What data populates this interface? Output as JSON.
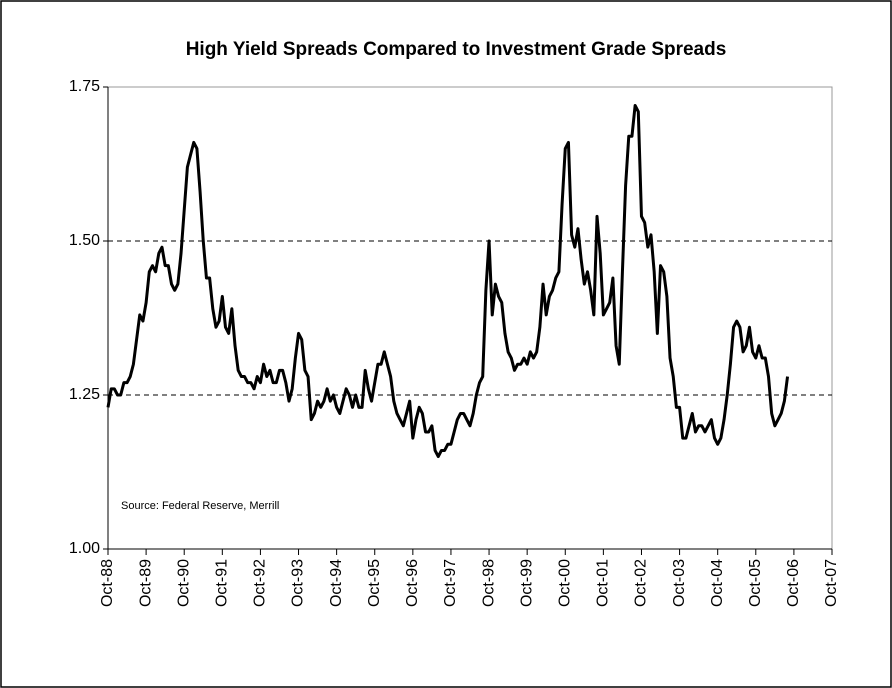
{
  "chart_data": {
    "type": "line",
    "title": "High Yield Spreads Compared to Investment Grade Spreads",
    "annotation": "Source: Federal Reserve, Merrill",
    "categories": [
      "Oct-88",
      null,
      null,
      null,
      null,
      null,
      null,
      null,
      null,
      null,
      null,
      null,
      "Oct-89",
      null,
      null,
      null,
      null,
      null,
      null,
      null,
      null,
      null,
      null,
      null,
      "Oct-90",
      null,
      null,
      null,
      null,
      null,
      null,
      null,
      null,
      null,
      null,
      null,
      "Oct-91",
      null,
      null,
      null,
      null,
      null,
      null,
      null,
      null,
      null,
      null,
      null,
      "Oct-92",
      null,
      null,
      null,
      null,
      null,
      null,
      null,
      null,
      null,
      null,
      null,
      "Oct-93",
      null,
      null,
      null,
      null,
      null,
      null,
      null,
      null,
      null,
      null,
      null,
      "Oct-94",
      null,
      null,
      null,
      null,
      null,
      null,
      null,
      null,
      null,
      null,
      null,
      "Oct-95",
      null,
      null,
      null,
      null,
      null,
      null,
      null,
      null,
      null,
      null,
      null,
      "Oct-96",
      null,
      null,
      null,
      null,
      null,
      null,
      null,
      null,
      null,
      null,
      null,
      "Oct-97",
      null,
      null,
      null,
      null,
      null,
      null,
      null,
      null,
      null,
      null,
      null,
      "Oct-98",
      null,
      null,
      null,
      null,
      null,
      null,
      null,
      null,
      null,
      null,
      null,
      "Oct-99",
      null,
      null,
      null,
      null,
      null,
      null,
      null,
      null,
      null,
      null,
      null,
      "Oct-00",
      null,
      null,
      null,
      null,
      null,
      null,
      null,
      null,
      null,
      null,
      null,
      "Oct-01",
      null,
      null,
      null,
      null,
      null,
      null,
      null,
      null,
      null,
      null,
      null,
      "Oct-02",
      null,
      null,
      null,
      null,
      null,
      null,
      null,
      null,
      null,
      null,
      null,
      "Oct-03",
      null,
      null,
      null,
      null,
      null,
      null,
      null,
      null,
      null,
      null,
      null,
      "Oct-04",
      null,
      null,
      null,
      null,
      null,
      null,
      null,
      null,
      null,
      null,
      null,
      "Oct-05",
      null,
      null,
      null,
      null,
      null,
      null,
      null,
      null,
      null,
      null,
      null,
      "Oct-06",
      null,
      null,
      null,
      null,
      null,
      null,
      null,
      null,
      null,
      null,
      null,
      "Oct-07"
    ],
    "series": [
      {
        "color": "#000000",
        "values": [
          1.23,
          1.26,
          1.26,
          1.25,
          1.25,
          1.27,
          1.27,
          1.28,
          1.3,
          1.34,
          1.38,
          1.37,
          1.4,
          1.45,
          1.46,
          1.45,
          1.48,
          1.49,
          1.46,
          1.46,
          1.43,
          1.42,
          1.43,
          1.48,
          1.55,
          1.62,
          1.64,
          1.66,
          1.65,
          1.58,
          1.5,
          1.44,
          1.44,
          1.39,
          1.36,
          1.37,
          1.41,
          1.36,
          1.35,
          1.39,
          1.33,
          1.29,
          1.28,
          1.28,
          1.27,
          1.27,
          1.26,
          1.28,
          1.27,
          1.3,
          1.28,
          1.29,
          1.27,
          1.27,
          1.29,
          1.29,
          1.27,
          1.24,
          1.26,
          1.31,
          1.35,
          1.34,
          1.29,
          1.28,
          1.21,
          1.22,
          1.24,
          1.23,
          1.24,
          1.26,
          1.24,
          1.25,
          1.23,
          1.22,
          1.24,
          1.26,
          1.25,
          1.23,
          1.25,
          1.23,
          1.23,
          1.29,
          1.26,
          1.24,
          1.27,
          1.3,
          1.3,
          1.32,
          1.3,
          1.28,
          1.24,
          1.22,
          1.21,
          1.2,
          1.22,
          1.24,
          1.18,
          1.21,
          1.23,
          1.22,
          1.19,
          1.19,
          1.2,
          1.16,
          1.15,
          1.16,
          1.16,
          1.17,
          1.17,
          1.19,
          1.21,
          1.22,
          1.22,
          1.21,
          1.2,
          1.22,
          1.25,
          1.27,
          1.28,
          1.42,
          1.5,
          1.38,
          1.43,
          1.41,
          1.4,
          1.35,
          1.32,
          1.31,
          1.29,
          1.3,
          1.3,
          1.31,
          1.3,
          1.32,
          1.31,
          1.32,
          1.36,
          1.43,
          1.38,
          1.41,
          1.42,
          1.44,
          1.45,
          1.56,
          1.65,
          1.66,
          1.51,
          1.49,
          1.52,
          1.47,
          1.43,
          1.45,
          1.42,
          1.38,
          1.54,
          1.48,
          1.38,
          1.39,
          1.4,
          1.44,
          1.33,
          1.3,
          1.45,
          1.59,
          1.67,
          1.67,
          1.72,
          1.71,
          1.54,
          1.53,
          1.49,
          1.51,
          1.45,
          1.35,
          1.46,
          1.45,
          1.41,
          1.31,
          1.28,
          1.23,
          1.23,
          1.18,
          1.18,
          1.2,
          1.22,
          1.19,
          1.2,
          1.2,
          1.19,
          1.2,
          1.21,
          1.18,
          1.17,
          1.18,
          1.21,
          1.25,
          1.3,
          1.36,
          1.37,
          1.36,
          1.32,
          1.33,
          1.36,
          1.32,
          1.31,
          1.33,
          1.31,
          1.31,
          1.28,
          1.22,
          1.2,
          1.21,
          1.22,
          1.24,
          1.28,
          null,
          null,
          null,
          null,
          null,
          null,
          null,
          null,
          null,
          null,
          null,
          null,
          null,
          null
        ]
      }
    ],
    "ylim": [
      1,
      1.75
    ],
    "yticks": [
      {
        "value": 1,
        "label": "1.00"
      },
      {
        "value": 1.25,
        "label": "1.25"
      },
      {
        "value": 1.5,
        "label": "1.50"
      },
      {
        "value": 1.75,
        "label": "1.75"
      }
    ],
    "grid": true
  }
}
